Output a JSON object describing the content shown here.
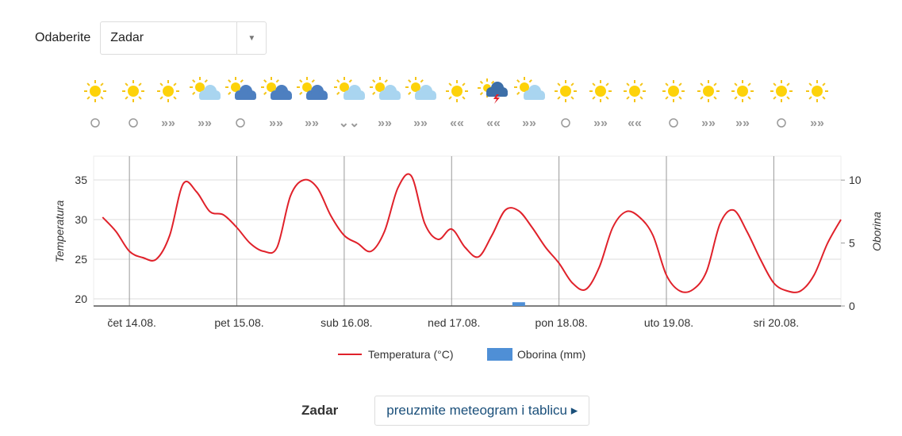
{
  "selector": {
    "label": "Odaberite",
    "value": "Zadar"
  },
  "footer": {
    "place": "Zadar",
    "link": "preuzmite meteogram i tablicu"
  },
  "chart_data": {
    "type": "line",
    "x": [
      -6,
      -3,
      0,
      3,
      6,
      9,
      12,
      15,
      18,
      21,
      24,
      27,
      30,
      33,
      36,
      39,
      42,
      45,
      48,
      51,
      54,
      57,
      60,
      63,
      66,
      69,
      72,
      75,
      78,
      81,
      84,
      87,
      90,
      93,
      96,
      99,
      102,
      105,
      108,
      111,
      114,
      117,
      120,
      123,
      126,
      129,
      132,
      135,
      138,
      141,
      144,
      147,
      150,
      153,
      156,
      159
    ],
    "xlim": [
      -8,
      159
    ],
    "xticks": [
      {
        "value": 0,
        "label": "čet 14.08."
      },
      {
        "value": 24,
        "label": "pet 15.08."
      },
      {
        "value": 48,
        "label": "sub 16.08."
      },
      {
        "value": 72,
        "label": "ned 17.08."
      },
      {
        "value": 96,
        "label": "pon 18.08."
      },
      {
        "value": 120,
        "label": "uto 19.08."
      },
      {
        "value": 144,
        "label": "sri 20.08."
      }
    ],
    "ylim": [
      19.1,
      38
    ],
    "yticks": [
      20,
      25,
      30,
      35
    ],
    "y2lim": [
      0,
      11.9
    ],
    "y2ticks": [
      0,
      5,
      10
    ],
    "ylabel": "Temperatura",
    "y2label": "Oborina",
    "grid": true,
    "series": [
      {
        "name": "Temperatura (°C)",
        "color": "#e0212a",
        "values": [
          30.3,
          28.5,
          26,
          25.2,
          25,
          28,
          34.5,
          33.5,
          31,
          30.6,
          29,
          27,
          26,
          26.5,
          33,
          35,
          34,
          30.5,
          28,
          27,
          26,
          28.5,
          34,
          35.5,
          29.5,
          27.5,
          28.8,
          26.5,
          25.3,
          28,
          31.2,
          31.1,
          29,
          26.5,
          24.5,
          22,
          21.2,
          24,
          29,
          31,
          30.3,
          28,
          23,
          21,
          21.2,
          23.5,
          29.5,
          31.2,
          28.5,
          25,
          22,
          21,
          21,
          23,
          27,
          30
        ]
      },
      {
        "name": "Oborina (mm)",
        "color": "#4f8fd6",
        "type": "bar",
        "axis": "y2",
        "values": [
          0,
          0,
          0,
          0,
          0,
          0,
          0,
          0,
          0,
          0,
          0,
          0,
          0,
          0,
          0,
          0,
          0,
          0,
          0,
          0,
          0,
          0,
          0,
          0,
          0,
          0,
          0,
          0,
          0,
          0,
          0,
          0.3,
          0,
          0,
          0,
          0,
          0,
          0,
          0,
          0,
          0,
          0,
          0,
          0,
          0,
          0,
          0,
          0,
          0,
          0,
          0,
          0,
          0,
          0,
          0,
          0
        ]
      }
    ]
  }
}
